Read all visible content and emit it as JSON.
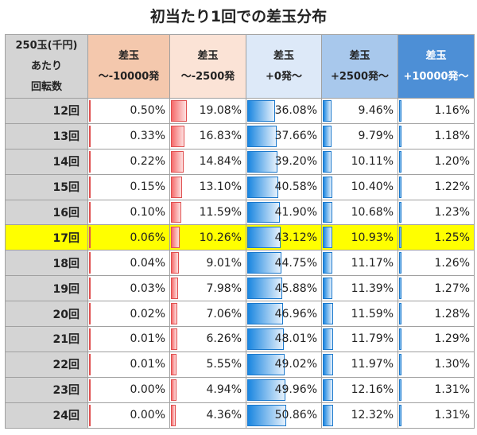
{
  "title": "初当たり1回での差玉分布",
  "headers": [
    [
      "250玉(千円)",
      "あたり",
      "回転数"
    ],
    [
      "差玉",
      "～-10000発"
    ],
    [
      "差玉",
      "～-2500発"
    ],
    [
      "差玉",
      "+0発～"
    ],
    [
      "差玉",
      "+2500発～"
    ],
    [
      "差玉",
      "+10000発～"
    ]
  ],
  "highlight_row": "17回",
  "colors": {
    "highlight": "#ffff00",
    "negative_bar": "#f56b6b",
    "positive_bar": "#1a86e0"
  },
  "rows": [
    {
      "label": "12回",
      "values": [
        "0.50%",
        "19.08%",
        "36.08%",
        "9.46%",
        "1.16%"
      ]
    },
    {
      "label": "13回",
      "values": [
        "0.33%",
        "16.83%",
        "37.66%",
        "9.79%",
        "1.18%"
      ]
    },
    {
      "label": "14回",
      "values": [
        "0.22%",
        "14.84%",
        "39.20%",
        "10.11%",
        "1.20%"
      ]
    },
    {
      "label": "15回",
      "values": [
        "0.15%",
        "13.10%",
        "40.58%",
        "10.40%",
        "1.22%"
      ]
    },
    {
      "label": "16回",
      "values": [
        "0.10%",
        "11.59%",
        "41.90%",
        "10.68%",
        "1.23%"
      ]
    },
    {
      "label": "17回",
      "values": [
        "0.06%",
        "10.26%",
        "43.12%",
        "10.93%",
        "1.25%"
      ]
    },
    {
      "label": "18回",
      "values": [
        "0.04%",
        "9.01%",
        "44.75%",
        "11.17%",
        "1.26%"
      ]
    },
    {
      "label": "19回",
      "values": [
        "0.03%",
        "7.98%",
        "45.88%",
        "11.39%",
        "1.27%"
      ]
    },
    {
      "label": "20回",
      "values": [
        "0.02%",
        "7.06%",
        "46.96%",
        "11.59%",
        "1.28%"
      ]
    },
    {
      "label": "21回",
      "values": [
        "0.01%",
        "6.26%",
        "48.01%",
        "11.79%",
        "1.29%"
      ]
    },
    {
      "label": "22回",
      "values": [
        "0.01%",
        "5.55%",
        "49.02%",
        "11.97%",
        "1.30%"
      ]
    },
    {
      "label": "23回",
      "values": [
        "0.00%",
        "4.94%",
        "49.96%",
        "12.16%",
        "1.31%"
      ]
    },
    {
      "label": "24回",
      "values": [
        "0.00%",
        "4.36%",
        "50.86%",
        "12.32%",
        "1.31%"
      ]
    }
  ]
}
